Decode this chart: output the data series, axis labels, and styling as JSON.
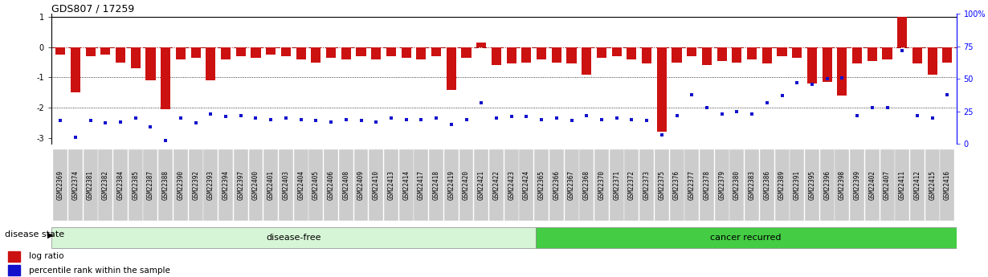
{
  "title": "GDS807 / 17259",
  "samples": [
    "GSM22369",
    "GSM22374",
    "GSM22381",
    "GSM22382",
    "GSM22384",
    "GSM22385",
    "GSM22387",
    "GSM22388",
    "GSM22390",
    "GSM22392",
    "GSM22393",
    "GSM22394",
    "GSM22397",
    "GSM22400",
    "GSM22401",
    "GSM22403",
    "GSM22404",
    "GSM22405",
    "GSM22406",
    "GSM22408",
    "GSM22409",
    "GSM22410",
    "GSM22413",
    "GSM22414",
    "GSM22417",
    "GSM22418",
    "GSM22419",
    "GSM22420",
    "GSM22421",
    "GSM22422",
    "GSM22423",
    "GSM22424",
    "GSM22365",
    "GSM22366",
    "GSM22367",
    "GSM22368",
    "GSM22370",
    "GSM22371",
    "GSM22372",
    "GSM22373",
    "GSM22375",
    "GSM22376",
    "GSM22377",
    "GSM22378",
    "GSM22379",
    "GSM22380",
    "GSM22383",
    "GSM22386",
    "GSM22389",
    "GSM22391",
    "GSM22395",
    "GSM22396",
    "GSM22398",
    "GSM22399",
    "GSM22402",
    "GSM22407",
    "GSM22411",
    "GSM22412",
    "GSM22415",
    "GSM22416"
  ],
  "log_ratio": [
    -0.25,
    -1.5,
    -0.3,
    -0.25,
    -0.5,
    -0.7,
    -1.1,
    -2.05,
    -0.4,
    -0.35,
    -1.1,
    -0.4,
    -0.3,
    -0.35,
    -0.25,
    -0.3,
    -0.4,
    -0.5,
    -0.35,
    -0.4,
    -0.3,
    -0.4,
    -0.3,
    -0.35,
    -0.4,
    -0.3,
    -1.4,
    -0.35,
    0.15,
    -0.6,
    -0.55,
    -0.5,
    -0.4,
    -0.5,
    -0.55,
    -0.9,
    -0.35,
    -0.3,
    -0.4,
    -0.55,
    -2.8,
    -0.5,
    -0.3,
    -0.6,
    -0.45,
    -0.5,
    -0.4,
    -0.55,
    -0.3,
    -0.35,
    -1.2,
    -1.15,
    -1.6,
    -0.55,
    -0.45,
    -0.4,
    1.0,
    -0.55,
    -0.9,
    -0.5
  ],
  "percentile": [
    18,
    5,
    18,
    16,
    17,
    20,
    13,
    3,
    20,
    16,
    23,
    21,
    22,
    20,
    19,
    20,
    19,
    18,
    17,
    19,
    18,
    17,
    20,
    19,
    19,
    20,
    15,
    19,
    32,
    20,
    21,
    21,
    19,
    20,
    18,
    22,
    19,
    20,
    19,
    18,
    7,
    22,
    38,
    28,
    23,
    25,
    23,
    32,
    37,
    47,
    46,
    50,
    51,
    22,
    28,
    28,
    72,
    22,
    20,
    38
  ],
  "disease_free_count": 32,
  "ylim_left": [
    -3.2,
    1.1
  ],
  "ylim_right": [
    0,
    100
  ],
  "yticks_left": [
    1,
    0,
    -1,
    -2,
    -3
  ],
  "yticks_right": [
    0,
    25,
    50,
    75,
    100
  ],
  "bar_color": "#cc1111",
  "dot_color": "#1111cc",
  "disease_free_color": "#d6f5d6",
  "cancer_recurred_color": "#44cc44",
  "tick_bg_color": "#cccccc",
  "label_font_size": 5.5,
  "bar_width": 0.65
}
